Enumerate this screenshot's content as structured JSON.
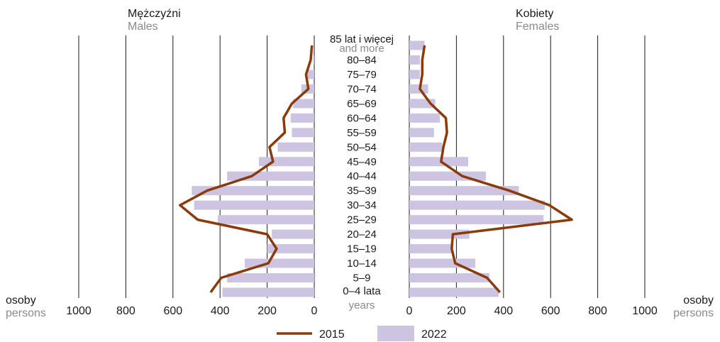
{
  "chart_data": {
    "type": "bar",
    "subtype": "population-pyramid",
    "left_panel": {
      "title": "Mężczyźni",
      "title_en": "Males"
    },
    "right_panel": {
      "title": "Kobiety",
      "title_en": "Females"
    },
    "axis_unit_pl": "osoby",
    "axis_unit_en": "persons",
    "tick_values": [
      0,
      200,
      400,
      600,
      800,
      1000
    ],
    "xlim": [
      0,
      1000
    ],
    "grid": true,
    "categories": [
      {
        "pl": "85 lat i więcej",
        "en": "and more"
      },
      {
        "pl": "80–84",
        "en": ""
      },
      {
        "pl": "75–79",
        "en": ""
      },
      {
        "pl": "70–74",
        "en": ""
      },
      {
        "pl": "65–69",
        "en": ""
      },
      {
        "pl": "60–64",
        "en": ""
      },
      {
        "pl": "55–59",
        "en": ""
      },
      {
        "pl": "50–54",
        "en": ""
      },
      {
        "pl": "45–49",
        "en": ""
      },
      {
        "pl": "40–44",
        "en": ""
      },
      {
        "pl": "35–39",
        "en": ""
      },
      {
        "pl": "30–34",
        "en": ""
      },
      {
        "pl": "25–29",
        "en": ""
      },
      {
        "pl": "20–24",
        "en": ""
      },
      {
        "pl": "15–19",
        "en": ""
      },
      {
        "pl": "10–14",
        "en": ""
      },
      {
        "pl": "5–9",
        "en": ""
      },
      {
        "pl": "0–4 lata",
        "en": "years"
      }
    ],
    "series": [
      {
        "name": "2022",
        "style": "bars",
        "color": "#ccc4e0",
        "males": [
          0,
          5,
          30,
          55,
          90,
          100,
          95,
          155,
          235,
          370,
          520,
          510,
          410,
          180,
          200,
          295,
          370,
          390
        ],
        "females": [
          65,
          45,
          45,
          80,
          110,
          130,
          105,
          140,
          250,
          325,
          465,
          575,
          570,
          255,
          185,
          280,
          340,
          380
        ]
      },
      {
        "name": "2015",
        "style": "line",
        "color": "#8b3a0a",
        "males": [
          10,
          15,
          35,
          25,
          95,
          130,
          125,
          190,
          175,
          265,
          455,
          570,
          495,
          200,
          160,
          195,
          395,
          440
        ],
        "females": [
          65,
          55,
          55,
          45,
          90,
          155,
          160,
          145,
          135,
          225,
          425,
          595,
          690,
          185,
          180,
          195,
          330,
          385
        ]
      }
    ],
    "legend": [
      {
        "label": "2015",
        "style": "line",
        "color": "#8b3a0a"
      },
      {
        "label": "2022",
        "style": "bar",
        "color": "#ccc4e0"
      }
    ],
    "legend_position": "bottom-center"
  }
}
